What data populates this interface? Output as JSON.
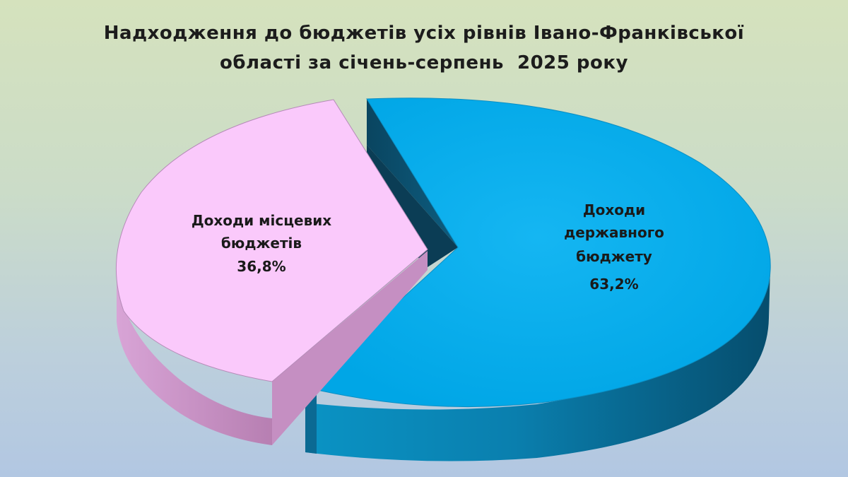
{
  "chart_data": {
    "type": "pie",
    "title_lines": [
      "Надходження до бюджетів усіх рівнів Івано-Франківської",
      "області за січень-серпень  2025 року"
    ],
    "slices": [
      {
        "label_lines": [
          "Доходи місцевих",
          "бюджетів"
        ],
        "value": 36.8,
        "value_label": "36,8%",
        "color": "#fac9fb",
        "side_color": "#c994c6"
      },
      {
        "label_lines": [
          "Доходи",
          "державного",
          "бюджету"
        ],
        "value": 63.2,
        "value_label": "63,2%",
        "color": "#00aeef",
        "side_color": "#005a80"
      }
    ]
  }
}
